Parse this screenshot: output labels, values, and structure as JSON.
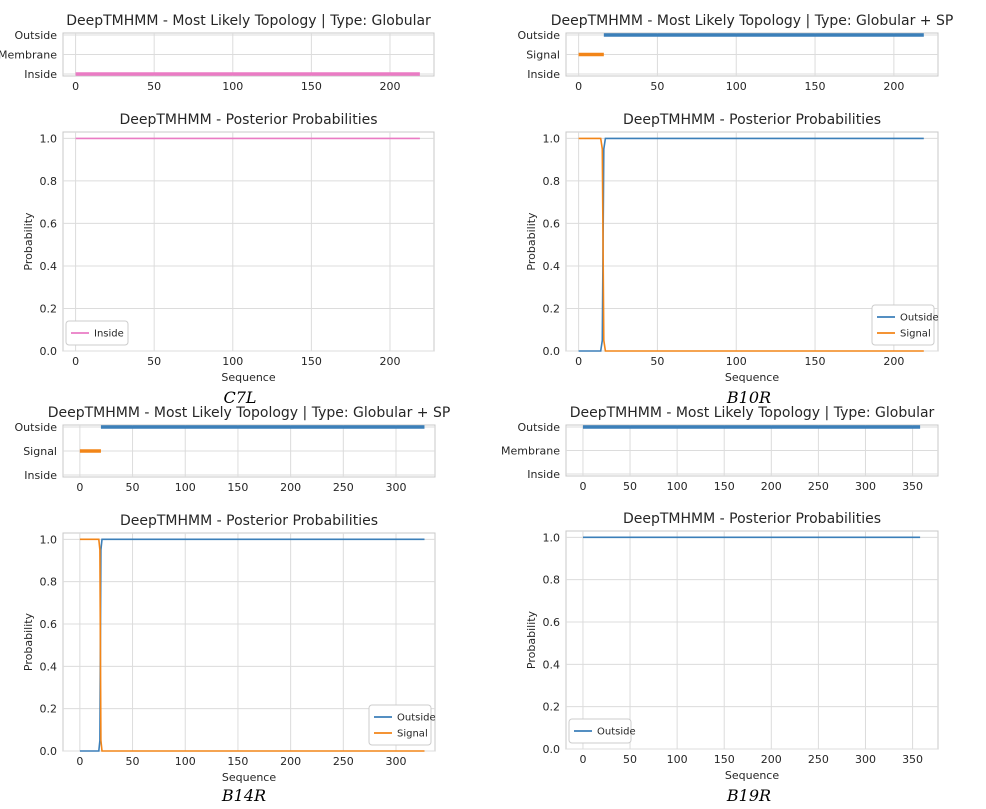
{
  "colors": {
    "outside": "#3b7fb9",
    "signal": "#f28518",
    "inside": "#ea7bc4",
    "grid": "#dcdcdc",
    "frame": "#c8c8c8"
  },
  "captions": [
    "C7L",
    "B10R",
    "B14R",
    "B19R"
  ],
  "chart_data": [
    {
      "type": "line",
      "title": "DeepTMHMM - Most Likely Topology | Type: Globular",
      "xlim": [
        -8,
        228
      ],
      "xticks": [
        0,
        50,
        100,
        150,
        200
      ],
      "ycats": [
        "Outside",
        "Membrane",
        "Inside"
      ],
      "series": [
        {
          "color": "#ea7bc4",
          "level": "Inside",
          "x": [
            0,
            219
          ]
        }
      ]
    },
    {
      "type": "line",
      "title": "DeepTMHMM - Posterior Probabilities",
      "xlim": [
        -8,
        228
      ],
      "xticks": [
        0,
        50,
        100,
        150,
        200
      ],
      "ylim": [
        0,
        1.03
      ],
      "yticks": [
        0.0,
        0.2,
        0.4,
        0.6,
        0.8,
        1.0
      ],
      "xlabel": "Sequence",
      "ylabel": "Probability",
      "series": [
        {
          "name": "Inside",
          "color": "#ea7bc4",
          "x": [
            0,
            219
          ],
          "y": [
            1.0,
            1.0
          ]
        }
      ]
    },
    {
      "type": "line",
      "title": "DeepTMHMM - Most Likely Topology | Type: Globular + SP",
      "xlim": [
        -8,
        228
      ],
      "xticks": [
        0,
        50,
        100,
        150,
        200
      ],
      "ycats": [
        "Outside",
        "Signal",
        "Inside"
      ],
      "series": [
        {
          "color": "#3b7fb9",
          "level": "Outside",
          "x": [
            16,
            219
          ]
        },
        {
          "color": "#f28518",
          "level": "Signal",
          "x": [
            0,
            16
          ]
        }
      ]
    },
    {
      "type": "line",
      "title": "DeepTMHMM - Posterior Probabilities",
      "xlim": [
        -8,
        228
      ],
      "xticks": [
        0,
        50,
        100,
        150,
        200
      ],
      "ylim": [
        0,
        1.03
      ],
      "yticks": [
        0.0,
        0.2,
        0.4,
        0.6,
        0.8,
        1.0
      ],
      "xlabel": "Sequence",
      "ylabel": "Probability",
      "series": [
        {
          "name": "Outside",
          "color": "#3b7fb9",
          "x": [
            0,
            14,
            15,
            16,
            17,
            219
          ],
          "y": [
            0,
            0,
            0.05,
            0.95,
            1,
            1
          ]
        },
        {
          "name": "Signal",
          "color": "#f28518",
          "x": [
            0,
            14,
            15,
            16,
            17,
            219
          ],
          "y": [
            1,
            1,
            0.95,
            0.05,
            0,
            0
          ]
        }
      ]
    },
    {
      "type": "line",
      "title": "DeepTMHMM - Most Likely Topology | Type: Globular + SP",
      "xlim": [
        -16,
        337
      ],
      "xticks": [
        0,
        50,
        100,
        150,
        200,
        250,
        300
      ],
      "ycats": [
        "Outside",
        "Signal",
        "Inside"
      ],
      "series": [
        {
          "color": "#3b7fb9",
          "level": "Outside",
          "x": [
            20,
            327
          ]
        },
        {
          "color": "#f28518",
          "level": "Signal",
          "x": [
            0,
            20
          ]
        }
      ]
    },
    {
      "type": "line",
      "title": "DeepTMHMM - Posterior Probabilities",
      "xlim": [
        -16,
        337
      ],
      "xticks": [
        0,
        50,
        100,
        150,
        200,
        250,
        300
      ],
      "ylim": [
        0,
        1.03
      ],
      "yticks": [
        0.0,
        0.2,
        0.4,
        0.6,
        0.8,
        1.0
      ],
      "xlabel": "Sequence",
      "ylabel": "Probability",
      "series": [
        {
          "name": "Outside",
          "color": "#3b7fb9",
          "x": [
            0,
            18,
            19,
            20,
            21,
            327
          ],
          "y": [
            0,
            0,
            0.05,
            0.95,
            1,
            1
          ]
        },
        {
          "name": "Signal",
          "color": "#f28518",
          "x": [
            0,
            18,
            19,
            20,
            21,
            327
          ],
          "y": [
            1,
            1,
            0.95,
            0.05,
            0,
            0
          ]
        }
      ]
    },
    {
      "type": "line",
      "title": "DeepTMHMM - Most Likely Topology | Type: Globular",
      "xlim": [
        -18,
        377
      ],
      "xticks": [
        0,
        50,
        100,
        150,
        200,
        250,
        300,
        350
      ],
      "ycats": [
        "Outside",
        "Membrane",
        "Inside"
      ],
      "series": [
        {
          "color": "#3b7fb9",
          "level": "Outside",
          "x": [
            0,
            358
          ]
        }
      ]
    },
    {
      "type": "line",
      "title": "DeepTMHMM - Posterior Probabilities",
      "xlim": [
        -18,
        377
      ],
      "xticks": [
        0,
        50,
        100,
        150,
        200,
        250,
        300,
        350
      ],
      "ylim": [
        0,
        1.03
      ],
      "yticks": [
        0.0,
        0.2,
        0.4,
        0.6,
        0.8,
        1.0
      ],
      "xlabel": "Sequence",
      "ylabel": "Probability",
      "series": [
        {
          "name": "Outside",
          "color": "#3b7fb9",
          "x": [
            0,
            358
          ],
          "y": [
            1.0,
            1.0
          ]
        }
      ]
    }
  ]
}
